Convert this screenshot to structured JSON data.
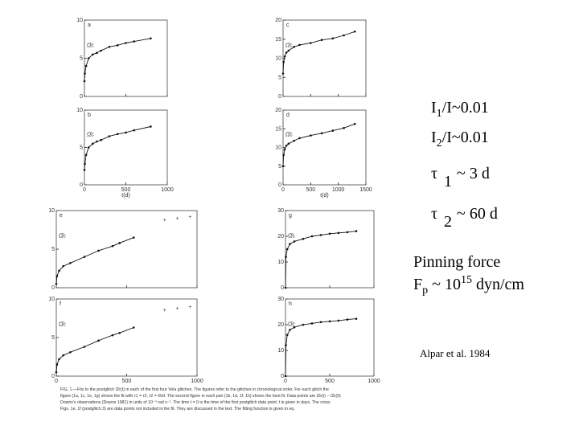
{
  "chart_data": [
    {
      "type": "line",
      "panel": "a",
      "ylabel": "Ω̂c",
      "xlim": [
        0,
        1000
      ],
      "ylim": [
        0,
        10
      ],
      "yticks": [
        0,
        5,
        10
      ],
      "xticks": [
        0,
        500,
        1000
      ],
      "series": [
        {
          "color": "#111",
          "line": true,
          "x": [
            0,
            5,
            20,
            50,
            100,
            150,
            200,
            300,
            400,
            500,
            600,
            800
          ],
          "values": [
            2,
            3,
            4,
            5,
            5.5,
            5.7,
            6,
            6.5,
            6.7,
            7,
            7.2,
            7.6
          ]
        }
      ]
    },
    {
      "type": "line",
      "panel": "b",
      "ylabel": "Ω̂c",
      "xlabel": "t(d)",
      "xlim": [
        0,
        1000
      ],
      "ylim": [
        0,
        10
      ],
      "yticks": [
        0,
        5,
        10
      ],
      "xticks": [
        0,
        500,
        1000
      ],
      "series": [
        {
          "color": "#111",
          "line": true,
          "x": [
            0,
            5,
            20,
            50,
            100,
            150,
            200,
            300,
            400,
            500,
            600,
            800
          ],
          "values": [
            2,
            2.8,
            4,
            5,
            5.5,
            5.8,
            6,
            6.5,
            6.8,
            7,
            7.3,
            7.8
          ]
        }
      ]
    },
    {
      "type": "line",
      "panel": "c",
      "ylabel": "Ω̂c",
      "xlim": [
        0,
        1500
      ],
      "ylim": [
        0,
        20
      ],
      "yticks": [
        0,
        5,
        10,
        15,
        20
      ],
      "xticks": [
        0,
        500,
        1000,
        1500
      ],
      "series": [
        {
          "color": "#111",
          "line": true,
          "x": [
            0,
            10,
            30,
            60,
            100,
            200,
            300,
            500,
            700,
            900,
            1100,
            1300
          ],
          "values": [
            6,
            9,
            10.5,
            11.5,
            12,
            13,
            13.5,
            14,
            14.8,
            15.2,
            16,
            17
          ]
        }
      ]
    },
    {
      "type": "line",
      "panel": "d",
      "ylabel": "Ω̂c",
      "xlabel": "t(d)",
      "xlim": [
        0,
        1500
      ],
      "ylim": [
        0,
        20
      ],
      "yticks": [
        0,
        5,
        10,
        15,
        20
      ],
      "xticks": [
        0,
        500,
        1000,
        1500
      ],
      "series": [
        {
          "color": "#111",
          "line": true,
          "x": [
            0,
            10,
            30,
            60,
            100,
            200,
            300,
            500,
            700,
            900,
            1100,
            1300
          ],
          "values": [
            5,
            8,
            9.5,
            10.5,
            11,
            11.8,
            12.5,
            13.2,
            13.8,
            14.5,
            15.2,
            16.3
          ]
        }
      ]
    },
    {
      "type": "line",
      "panel": "e",
      "ylabel": "Ω̂c",
      "xlim": [
        0,
        1000
      ],
      "ylim": [
        0,
        10
      ],
      "yticks": [
        0,
        5,
        10
      ],
      "xticks": [
        0,
        500,
        1000
      ],
      "series": [
        {
          "color": "#111",
          "line": true,
          "x": [
            0,
            5,
            20,
            50,
            100,
            200,
            300,
            400,
            450,
            550
          ],
          "values": [
            0.5,
            1.5,
            2.2,
            2.8,
            3.2,
            4,
            4.8,
            5.4,
            5.8,
            6.5
          ]
        },
        {
          "color": "#111",
          "line": false,
          "x": [
            770,
            860,
            950
          ],
          "values": [
            8.8,
            9,
            9.2
          ]
        }
      ]
    },
    {
      "type": "line",
      "panel": "f",
      "ylabel": "Ω̂c",
      "xlim": [
        0,
        1000
      ],
      "ylim": [
        0,
        10
      ],
      "yticks": [
        0,
        5,
        10
      ],
      "xticks": [
        0,
        500,
        1000
      ],
      "series": [
        {
          "color": "#111",
          "line": true,
          "x": [
            0,
            5,
            20,
            50,
            100,
            200,
            300,
            400,
            450,
            550
          ],
          "values": [
            0.5,
            1.5,
            2.2,
            2.7,
            3.1,
            3.8,
            4.6,
            5.3,
            5.6,
            6.3
          ]
        },
        {
          "color": "#111",
          "line": false,
          "x": [
            770,
            860,
            950
          ],
          "values": [
            8.6,
            8.8,
            9
          ]
        }
      ]
    },
    {
      "type": "line",
      "panel": "g",
      "ylabel": "Ω̂c",
      "xlim": [
        0,
        1000
      ],
      "ylim": [
        0,
        30
      ],
      "yticks": [
        0,
        10,
        20,
        30
      ],
      "xticks": [
        0,
        500,
        1000
      ],
      "series": [
        {
          "color": "#111",
          "line": true,
          "x": [
            0,
            5,
            20,
            50,
            100,
            200,
            300,
            400,
            500,
            600,
            700,
            800
          ],
          "values": [
            0,
            12,
            15,
            17,
            18,
            19,
            20,
            20.5,
            21,
            21.3,
            21.6,
            22
          ]
        }
      ]
    },
    {
      "type": "line",
      "panel": "h",
      "ylabel": "Ω̂c",
      "xlim": [
        0,
        1000
      ],
      "ylim": [
        0,
        30
      ],
      "yticks": [
        0,
        10,
        20,
        30
      ],
      "xticks": [
        0,
        500,
        1000
      ],
      "series": [
        {
          "color": "#111",
          "line": true,
          "x": [
            0,
            5,
            20,
            50,
            100,
            200,
            300,
            400,
            500,
            600,
            700,
            800
          ],
          "values": [
            0,
            12,
            16,
            18,
            19,
            20,
            20.5,
            21,
            21.3,
            21.6,
            22,
            22.3
          ]
        }
      ]
    }
  ],
  "notes": {
    "ratio1": {
      "sym": "I",
      "sub": "1",
      "rest": "/I~0.01"
    },
    "ratio2": {
      "sym": "I",
      "sub": "2",
      "rest": "/I~0.01"
    },
    "tau1": {
      "sym": "τ",
      "sub": "1",
      "rest": "~ 3 d"
    },
    "tau2": {
      "sym": "τ",
      "sub": "2",
      "rest": "~ 60 d"
    },
    "pinning": "Pinning force",
    "force": {
      "sym": "F",
      "sub": "p",
      "mid": " ~ 10",
      "exp": "15",
      "rest": " dyn/cm"
    },
    "citation": "Alpar et al. 1984"
  },
  "caption": [
    "FIG. 1.—Fits to the postglitch Ω̂c(t) in each of the first four Vela glitches. The figures refer to the glitches in chronological order. For each glitch the",
    "figure (1a, 1c, 1e, 1g) shows the fit with τ1 = τ2, τ2 = 60d. The second figure in each pair (1b, 1d, 1f, 1h) shows the best fit. Data points are Ω̂c(t) − Ω̂c(0)",
    "Downs's observations (Downs 1981) in units of 10⁻⁴ rad s⁻¹. The time t = 0 is the time of the first postglitch data point; t is given in days. The cross",
    "Figs. 1e, 1f (postglitch 3) are data points not included in the fit. They are discussed in the text. The fitting function is given in eq."
  ]
}
